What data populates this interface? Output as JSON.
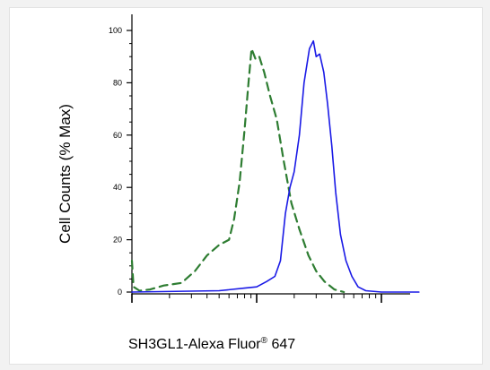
{
  "chart_data": {
    "type": "line",
    "title": "",
    "xlabel_main": "SH3GL1-Alexa Fluor",
    "xlabel_reg": "®",
    "xlabel_tail": "647",
    "ylabel": "Cell Counts (% Max)",
    "ylim": [
      0,
      100
    ],
    "yticks": [
      "0",
      "20",
      "40",
      "60",
      "80",
      "100"
    ],
    "x_scale": "log",
    "x_decades": [
      1,
      10,
      100
    ],
    "xlim": [
      1,
      200
    ],
    "grid": false,
    "series": [
      {
        "style": "dashed",
        "color": "#2e7d32",
        "points": [
          [
            1.0,
            12
          ],
          [
            1.03,
            2
          ],
          [
            1.15,
            0.5
          ],
          [
            1.4,
            1
          ],
          [
            1.8,
            2.5
          ],
          [
            2.5,
            3.5
          ],
          [
            3.2,
            8
          ],
          [
            4.0,
            14
          ],
          [
            5.0,
            18
          ],
          [
            6.0,
            20
          ],
          [
            6.6,
            28
          ],
          [
            7.3,
            42
          ],
          [
            8.0,
            62
          ],
          [
            8.6,
            80
          ],
          [
            9.1,
            93
          ],
          [
            9.8,
            89
          ],
          [
            10.5,
            90
          ],
          [
            11.5,
            84
          ],
          [
            12.8,
            75
          ],
          [
            14.5,
            66
          ],
          [
            16.5,
            50
          ],
          [
            19.0,
            34
          ],
          [
            22.0,
            24
          ],
          [
            26.0,
            14
          ],
          [
            30.0,
            8
          ],
          [
            35.0,
            4
          ],
          [
            42.0,
            1
          ],
          [
            50.0,
            0
          ]
        ]
      },
      {
        "style": "solid",
        "color": "#1a1ae6",
        "points": [
          [
            1.0,
            0
          ],
          [
            5.0,
            0.5
          ],
          [
            8.0,
            1.5
          ],
          [
            10.0,
            2
          ],
          [
            12.0,
            4
          ],
          [
            14.0,
            6
          ],
          [
            15.5,
            12
          ],
          [
            17.0,
            30
          ],
          [
            18.5,
            40
          ],
          [
            20.0,
            46
          ],
          [
            22.0,
            60
          ],
          [
            24.0,
            80
          ],
          [
            26.5,
            93
          ],
          [
            28.5,
            96
          ],
          [
            30.0,
            90
          ],
          [
            32.0,
            91
          ],
          [
            34.5,
            84
          ],
          [
            37.0,
            72
          ],
          [
            40.0,
            56
          ],
          [
            43.0,
            38
          ],
          [
            47.0,
            22
          ],
          [
            52.0,
            12
          ],
          [
            58.0,
            6
          ],
          [
            65.0,
            2
          ],
          [
            75.0,
            0.5
          ],
          [
            100.0,
            0
          ],
          [
            200.0,
            0
          ]
        ]
      }
    ]
  }
}
